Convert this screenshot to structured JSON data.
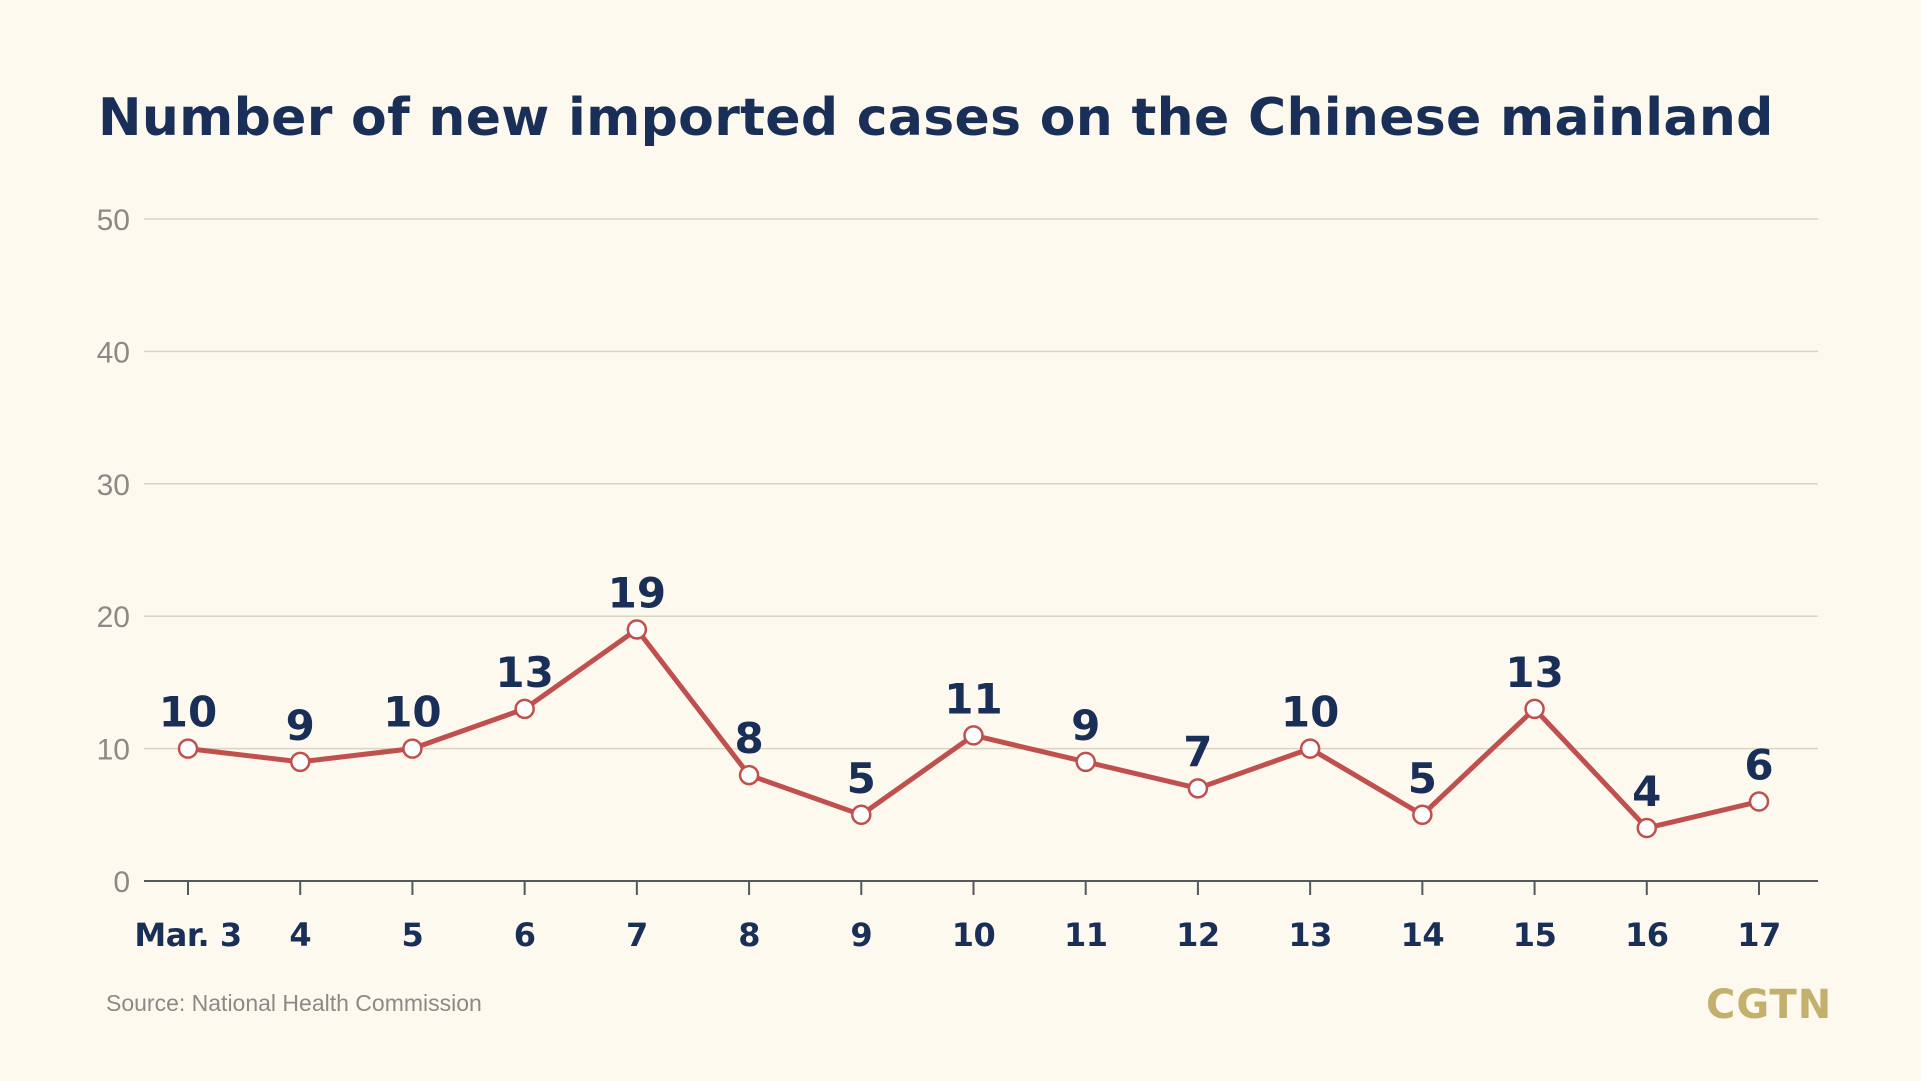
{
  "title": "Number of new imported cases on the Chinese mainland",
  "source": "Source: National Health Commission",
  "logo_text": "CGTN",
  "colors": {
    "background": "#fdf9ee",
    "title": "#1a2f57",
    "line": "#c0504d",
    "marker_fill": "#ffffff",
    "grid": "#d8d4c6",
    "axis_text": "#8a8a86",
    "data_label": "#1a2f57",
    "logo": "#c3b06c"
  },
  "chart_data": {
    "type": "line",
    "title": "Number of new imported cases on the Chinese mainland",
    "categories": [
      "Mar. 3",
      "4",
      "5",
      "6",
      "7",
      "8",
      "9",
      "10",
      "11",
      "12",
      "13",
      "14",
      "15",
      "16",
      "17"
    ],
    "series": [
      {
        "values": [
          10,
          9,
          10,
          13,
          19,
          8,
          5,
          11,
          9,
          7,
          10,
          5,
          13,
          4,
          6
        ]
      }
    ],
    "xlabel": "",
    "ylabel": "",
    "ylim": [
      0,
      50
    ],
    "yticks": [
      0,
      10,
      20,
      30,
      40,
      50
    ],
    "grid": true,
    "data_labels": true
  }
}
